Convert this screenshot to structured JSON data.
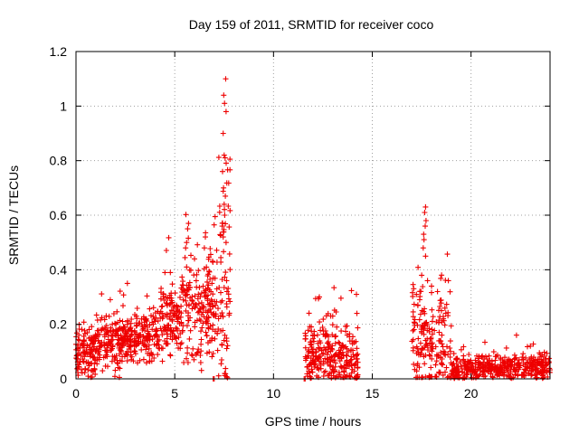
{
  "chart_data": {
    "type": "scatter",
    "title": "Day 159 of 2011, SRMTID for receiver coco",
    "xlabel": "GPS time / hours",
    "ylabel": "SRMTID / TECUs",
    "xlim": [
      0,
      24
    ],
    "ylim": [
      0,
      1.2
    ],
    "x_ticks": [
      0,
      5,
      10,
      15,
      20
    ],
    "x_tick_labels": [
      "0",
      "5",
      "10",
      "15",
      "20"
    ],
    "y_ticks": [
      0,
      0.2,
      0.4,
      0.6,
      0.8,
      1.0,
      1.2
    ],
    "y_tick_labels": [
      "0",
      "0.2",
      "0.4",
      "0.6",
      "0.8",
      "1",
      "1.2"
    ],
    "grid": true,
    "marker": "plus",
    "color": "#ee0000",
    "series": [
      {
        "name": "SRMTID",
        "segments": [
          {
            "x0": 0.0,
            "x1": 1.0,
            "base": 0.09,
            "spread": 0.07,
            "n": 120
          },
          {
            "x0": 1.0,
            "x1": 2.5,
            "base": 0.13,
            "spread": 0.09,
            "n": 160
          },
          {
            "x0": 2.5,
            "x1": 4.3,
            "base": 0.15,
            "spread": 0.08,
            "n": 180
          },
          {
            "x0": 4.3,
            "x1": 5.4,
            "base": 0.22,
            "spread": 0.12,
            "n": 120
          },
          {
            "x0": 5.4,
            "x1": 7.2,
            "base": 0.25,
            "spread": 0.16,
            "n": 190
          },
          {
            "x0": 7.2,
            "x1": 7.8,
            "base": 0.35,
            "spread": 0.35,
            "n": 70
          },
          {
            "x0": 11.6,
            "x1": 13.0,
            "base": 0.09,
            "spread": 0.09,
            "n": 150
          },
          {
            "x0": 13.0,
            "x1": 14.3,
            "base": 0.07,
            "spread": 0.1,
            "n": 130
          },
          {
            "x0": 17.0,
            "x1": 19.0,
            "base": 0.14,
            "spread": 0.16,
            "n": 180
          },
          {
            "x0": 19.0,
            "x1": 24.0,
            "base": 0.04,
            "spread": 0.035,
            "n": 420
          }
        ],
        "extremes": [
          [
            7.48,
            1.04
          ],
          [
            7.52,
            1.01
          ],
          [
            7.58,
            1.1
          ],
          [
            7.6,
            0.98
          ],
          [
            7.45,
            0.9
          ],
          [
            7.5,
            0.82
          ],
          [
            7.55,
            0.81
          ],
          [
            7.42,
            0.76
          ],
          [
            7.47,
            0.7
          ],
          [
            7.56,
            0.67
          ],
          [
            7.5,
            0.64
          ],
          [
            7.53,
            0.6
          ],
          [
            7.4,
            0.56
          ],
          [
            7.45,
            0.52
          ],
          [
            7.6,
            0.5
          ],
          [
            5.7,
            0.57
          ],
          [
            5.65,
            0.55
          ],
          [
            5.6,
            0.5
          ],
          [
            5.55,
            0.48
          ],
          [
            6.55,
            0.52
          ],
          [
            6.5,
            0.48
          ],
          [
            6.0,
            0.44
          ],
          [
            5.6,
            0.41
          ],
          [
            4.5,
            0.39
          ],
          [
            2.6,
            0.35
          ],
          [
            6.95,
            0.0
          ],
          [
            7.0,
            0.0
          ],
          [
            11.55,
            0.0
          ],
          [
            11.6,
            0.0
          ],
          [
            14.2,
            0.31
          ],
          [
            14.22,
            0.24
          ],
          [
            13.0,
            0.23
          ],
          [
            13.2,
            0.19
          ],
          [
            17.7,
            0.63
          ],
          [
            17.65,
            0.61
          ],
          [
            17.72,
            0.58
          ],
          [
            17.68,
            0.56
          ],
          [
            17.6,
            0.53
          ],
          [
            17.62,
            0.51
          ],
          [
            17.58,
            0.48
          ],
          [
            17.7,
            0.45
          ],
          [
            17.5,
            0.38
          ],
          [
            17.8,
            0.36
          ],
          [
            18.0,
            0.34
          ],
          [
            18.3,
            0.32
          ],
          [
            17.4,
            0.29
          ],
          [
            18.5,
            0.25
          ],
          [
            18.6,
            0.22
          ],
          [
            22.3,
            0.16
          ],
          [
            23.0,
            0.12
          ]
        ]
      }
    ]
  }
}
